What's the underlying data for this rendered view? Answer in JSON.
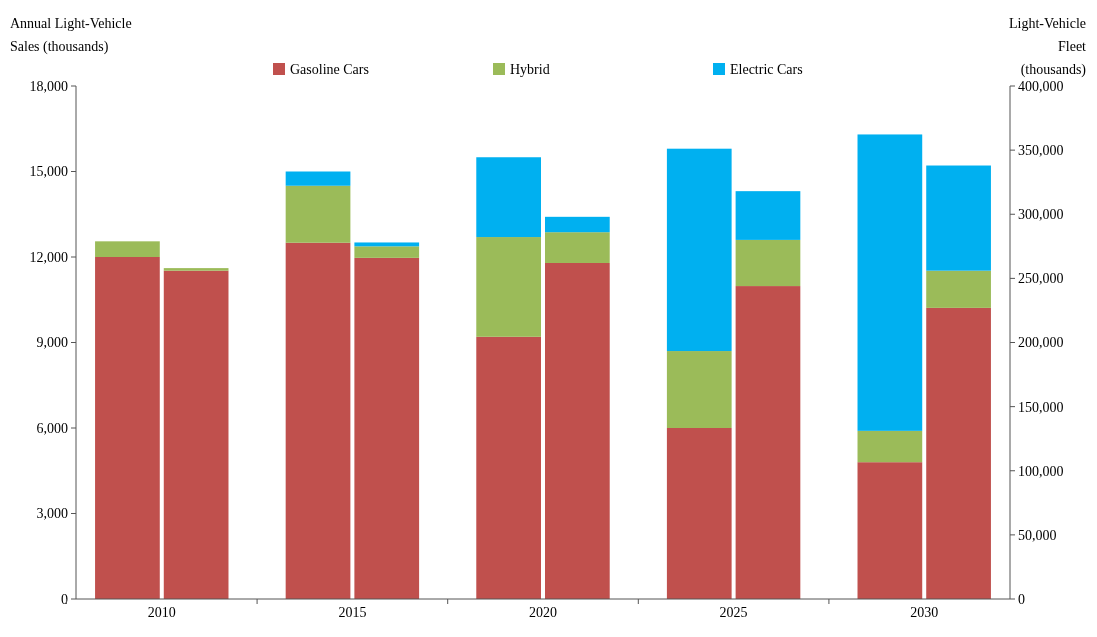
{
  "chart_data": {
    "type": "bar",
    "stacked": true,
    "ylabel": "Annual Light-Vehicle Sales (thousands)",
    "y2label": "Light-Vehicle Fleet (thousands)",
    "categories": [
      "2010",
      "2015",
      "2020",
      "2025",
      "2030"
    ],
    "series": [
      {
        "name": "Gasoline Cars",
        "color": "#c0504d",
        "values": [
          12000,
          12500,
          9200,
          6000,
          4800
        ]
      },
      {
        "name": "Hybrid",
        "color": "#9bbb59",
        "values": [
          550,
          2000,
          3500,
          2700,
          1100
        ]
      },
      {
        "name": "Electric Cars",
        "color": "#00b0f0",
        "values": [
          0,
          500,
          2800,
          7100,
          10400
        ]
      },
      {
        "color": "#c0504d",
        "axis": "y2",
        "values": [
          256000,
          266000,
          262000,
          244000,
          227000
        ]
      },
      {
        "color": "#9bbb59",
        "axis": "y2",
        "values": [
          2000,
          9000,
          24000,
          36000,
          29000
        ]
      },
      {
        "color": "#00b0f0",
        "axis": "y2",
        "values": [
          0,
          3000,
          12000,
          38000,
          82000
        ]
      }
    ],
    "ylim": [
      0,
      18000
    ],
    "yticks": [
      0,
      {
        "value": 3000,
        "label": "3,000"
      },
      {
        "value": 6000,
        "label": "6,000"
      },
      {
        "value": 9000,
        "label": "9,000"
      },
      {
        "value": 12000,
        "label": "12,000"
      },
      {
        "value": 15000,
        "label": "15,000"
      },
      {
        "value": 18000,
        "label": "18,000"
      }
    ],
    "y2lim": [
      0,
      400000
    ],
    "y2ticks": [
      0,
      {
        "value": 50000,
        "label": "50,000"
      },
      {
        "value": 100000,
        "label": "100,000"
      },
      {
        "value": 150000,
        "label": "150,000"
      },
      {
        "value": 200000,
        "label": "200,000"
      },
      {
        "value": 250000,
        "label": "250,000"
      },
      {
        "value": 300000,
        "label": "300,000"
      },
      {
        "value": 350000,
        "label": "350,000"
      },
      {
        "value": 400000,
        "label": "400,000"
      }
    ],
    "legend": "top",
    "grid": false
  }
}
